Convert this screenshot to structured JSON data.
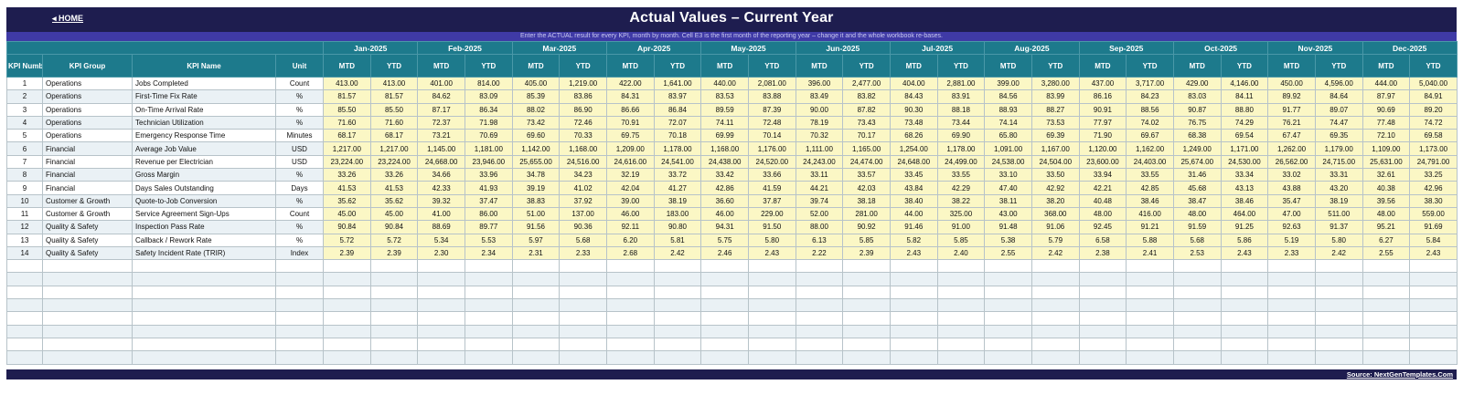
{
  "header": {
    "home": "◂ HOME",
    "title": "Actual Values  –  Current Year"
  },
  "subtitle": "Enter the ACTUAL result for every KPI, month by month. Cell E3 is the first month of the reporting year – change it and the whole workbook re-bases.",
  "columns": {
    "kpi_number": "KPI Number",
    "kpi_group": "KPI Group",
    "kpi_name": "KPI Name",
    "unit": "Unit",
    "mtd": "MTD",
    "ytd": "YTD"
  },
  "months": [
    "Jan-2025",
    "Feb-2025",
    "Mar-2025",
    "Apr-2025",
    "May-2025",
    "Jun-2025",
    "Jul-2025",
    "Aug-2025",
    "Sep-2025",
    "Oct-2025",
    "Nov-2025",
    "Dec-2025"
  ],
  "rows": [
    {
      "num": "1",
      "group": "Operations",
      "name": "Jobs Completed",
      "unit": "Count",
      "vals": [
        "413.00",
        "413.00",
        "401.00",
        "814.00",
        "405.00",
        "1,219.00",
        "422.00",
        "1,641.00",
        "440.00",
        "2,081.00",
        "396.00",
        "2,477.00",
        "404.00",
        "2,881.00",
        "399.00",
        "3,280.00",
        "437.00",
        "3,717.00",
        "429.00",
        "4,146.00",
        "450.00",
        "4,596.00",
        "444.00",
        "5,040.00"
      ]
    },
    {
      "num": "2",
      "group": "Operations",
      "name": "First-Time Fix Rate",
      "unit": "%",
      "vals": [
        "81.57",
        "81.57",
        "84.62",
        "83.09",
        "85.39",
        "83.86",
        "84.31",
        "83.97",
        "83.53",
        "83.88",
        "83.49",
        "83.82",
        "84.43",
        "83.91",
        "84.56",
        "83.99",
        "86.16",
        "84.23",
        "83.03",
        "84.11",
        "89.92",
        "84.64",
        "87.97",
        "84.91"
      ]
    },
    {
      "num": "3",
      "group": "Operations",
      "name": "On-Time Arrival Rate",
      "unit": "%",
      "vals": [
        "85.50",
        "85.50",
        "87.17",
        "86.34",
        "88.02",
        "86.90",
        "86.66",
        "86.84",
        "89.59",
        "87.39",
        "90.00",
        "87.82",
        "90.30",
        "88.18",
        "88.93",
        "88.27",
        "90.91",
        "88.56",
        "90.87",
        "88.80",
        "91.77",
        "89.07",
        "90.69",
        "89.20"
      ]
    },
    {
      "num": "4",
      "group": "Operations",
      "name": "Technician Utilization",
      "unit": "%",
      "vals": [
        "71.60",
        "71.60",
        "72.37",
        "71.98",
        "73.42",
        "72.46",
        "70.91",
        "72.07",
        "74.11",
        "72.48",
        "78.19",
        "73.43",
        "73.48",
        "73.44",
        "74.14",
        "73.53",
        "77.97",
        "74.02",
        "76.75",
        "74.29",
        "76.21",
        "74.47",
        "77.48",
        "74.72"
      ]
    },
    {
      "num": "5",
      "group": "Operations",
      "name": "Emergency Response Time",
      "unit": "Minutes",
      "vals": [
        "68.17",
        "68.17",
        "73.21",
        "70.69",
        "69.60",
        "70.33",
        "69.75",
        "70.18",
        "69.99",
        "70.14",
        "70.32",
        "70.17",
        "68.26",
        "69.90",
        "65.80",
        "69.39",
        "71.90",
        "69.67",
        "68.38",
        "69.54",
        "67.47",
        "69.35",
        "72.10",
        "69.58"
      ]
    },
    {
      "num": "6",
      "group": "Financial",
      "name": "Average Job Value",
      "unit": "USD",
      "vals": [
        "1,217.00",
        "1,217.00",
        "1,145.00",
        "1,181.00",
        "1,142.00",
        "1,168.00",
        "1,209.00",
        "1,178.00",
        "1,168.00",
        "1,176.00",
        "1,111.00",
        "1,165.00",
        "1,254.00",
        "1,178.00",
        "1,091.00",
        "1,167.00",
        "1,120.00",
        "1,162.00",
        "1,249.00",
        "1,171.00",
        "1,262.00",
        "1,179.00",
        "1,109.00",
        "1,173.00"
      ]
    },
    {
      "num": "7",
      "group": "Financial",
      "name": "Revenue per Electrician",
      "unit": "USD",
      "vals": [
        "23,224.00",
        "23,224.00",
        "24,668.00",
        "23,946.00",
        "25,655.00",
        "24,516.00",
        "24,616.00",
        "24,541.00",
        "24,438.00",
        "24,520.00",
        "24,243.00",
        "24,474.00",
        "24,648.00",
        "24,499.00",
        "24,538.00",
        "24,504.00",
        "23,600.00",
        "24,403.00",
        "25,674.00",
        "24,530.00",
        "26,562.00",
        "24,715.00",
        "25,631.00",
        "24,791.00"
      ]
    },
    {
      "num": "8",
      "group": "Financial",
      "name": "Gross Margin",
      "unit": "%",
      "vals": [
        "33.26",
        "33.26",
        "34.66",
        "33.96",
        "34.78",
        "34.23",
        "32.19",
        "33.72",
        "33.42",
        "33.66",
        "33.11",
        "33.57",
        "33.45",
        "33.55",
        "33.10",
        "33.50",
        "33.94",
        "33.55",
        "31.46",
        "33.34",
        "33.02",
        "33.31",
        "32.61",
        "33.25"
      ]
    },
    {
      "num": "9",
      "group": "Financial",
      "name": "Days Sales Outstanding",
      "unit": "Days",
      "vals": [
        "41.53",
        "41.53",
        "42.33",
        "41.93",
        "39.19",
        "41.02",
        "42.04",
        "41.27",
        "42.86",
        "41.59",
        "44.21",
        "42.03",
        "43.84",
        "42.29",
        "47.40",
        "42.92",
        "42.21",
        "42.85",
        "45.68",
        "43.13",
        "43.88",
        "43.20",
        "40.38",
        "42.96"
      ]
    },
    {
      "num": "10",
      "group": "Customer & Growth",
      "name": "Quote-to-Job Conversion",
      "unit": "%",
      "vals": [
        "35.62",
        "35.62",
        "39.32",
        "37.47",
        "38.83",
        "37.92",
        "39.00",
        "38.19",
        "36.60",
        "37.87",
        "39.74",
        "38.18",
        "38.40",
        "38.22",
        "38.11",
        "38.20",
        "40.48",
        "38.46",
        "38.47",
        "38.46",
        "35.47",
        "38.19",
        "39.56",
        "38.30"
      ]
    },
    {
      "num": "11",
      "group": "Customer & Growth",
      "name": "Service Agreement Sign-Ups",
      "unit": "Count",
      "vals": [
        "45.00",
        "45.00",
        "41.00",
        "86.00",
        "51.00",
        "137.00",
        "46.00",
        "183.00",
        "46.00",
        "229.00",
        "52.00",
        "281.00",
        "44.00",
        "325.00",
        "43.00",
        "368.00",
        "48.00",
        "416.00",
        "48.00",
        "464.00",
        "47.00",
        "511.00",
        "48.00",
        "559.00"
      ]
    },
    {
      "num": "12",
      "group": "Quality & Safety",
      "name": "Inspection Pass Rate",
      "unit": "%",
      "vals": [
        "90.84",
        "90.84",
        "88.69",
        "89.77",
        "91.56",
        "90.36",
        "92.11",
        "90.80",
        "94.31",
        "91.50",
        "88.00",
        "90.92",
        "91.46",
        "91.00",
        "91.48",
        "91.06",
        "92.45",
        "91.21",
        "91.59",
        "91.25",
        "92.63",
        "91.37",
        "95.21",
        "91.69"
      ]
    },
    {
      "num": "13",
      "group": "Quality & Safety",
      "name": "Callback / Rework Rate",
      "unit": "%",
      "vals": [
        "5.72",
        "5.72",
        "5.34",
        "5.53",
        "5.97",
        "5.68",
        "6.20",
        "5.81",
        "5.75",
        "5.80",
        "6.13",
        "5.85",
        "5.82",
        "5.85",
        "5.38",
        "5.79",
        "6.58",
        "5.88",
        "5.68",
        "5.86",
        "5.19",
        "5.80",
        "6.27",
        "5.84"
      ]
    },
    {
      "num": "14",
      "group": "Quality & Safety",
      "name": "Safety Incident Rate (TRIR)",
      "unit": "Index",
      "vals": [
        "2.39",
        "2.39",
        "2.30",
        "2.34",
        "2.31",
        "2.33",
        "2.68",
        "2.42",
        "2.46",
        "2.43",
        "2.22",
        "2.39",
        "2.43",
        "2.40",
        "2.55",
        "2.42",
        "2.38",
        "2.41",
        "2.53",
        "2.43",
        "2.33",
        "2.42",
        "2.55",
        "2.43"
      ]
    }
  ],
  "empty_rows": 8,
  "footer": {
    "source": "Source: NextGenTemplates.Com"
  },
  "colors": {
    "header_bg": "#1e1d4f",
    "subbar_bg": "#3f3aa6",
    "table_header": "#1d7a8c",
    "value_cell": "#fbf7c5"
  }
}
